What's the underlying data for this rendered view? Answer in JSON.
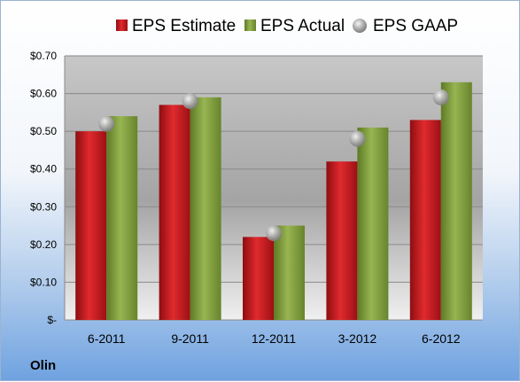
{
  "company": "Olin",
  "colors": {
    "estimate": "#c8181c",
    "actual": "#7f9e3c",
    "gaap": "#b4b4b4"
  },
  "chart_data": {
    "type": "bar",
    "categories": [
      "6-2011",
      "9-2011",
      "12-2011",
      "3-2012",
      "6-2012"
    ],
    "series": [
      {
        "name": "EPS Estimate",
        "values": [
          0.5,
          0.57,
          0.22,
          0.42,
          0.53
        ],
        "kind": "bar"
      },
      {
        "name": "EPS Actual",
        "values": [
          0.54,
          0.59,
          0.25,
          0.51,
          0.63
        ],
        "kind": "bar"
      },
      {
        "name": "EPS GAAP",
        "values": [
          0.52,
          0.58,
          0.23,
          0.48,
          0.59
        ],
        "kind": "marker"
      }
    ],
    "yticks": [
      "$-",
      "$0.10",
      "$0.20",
      "$0.30",
      "$0.40",
      "$0.50",
      "$0.60",
      "$0.70"
    ],
    "ylim": [
      0,
      0.7
    ],
    "grid": true,
    "legend_position": "top"
  }
}
